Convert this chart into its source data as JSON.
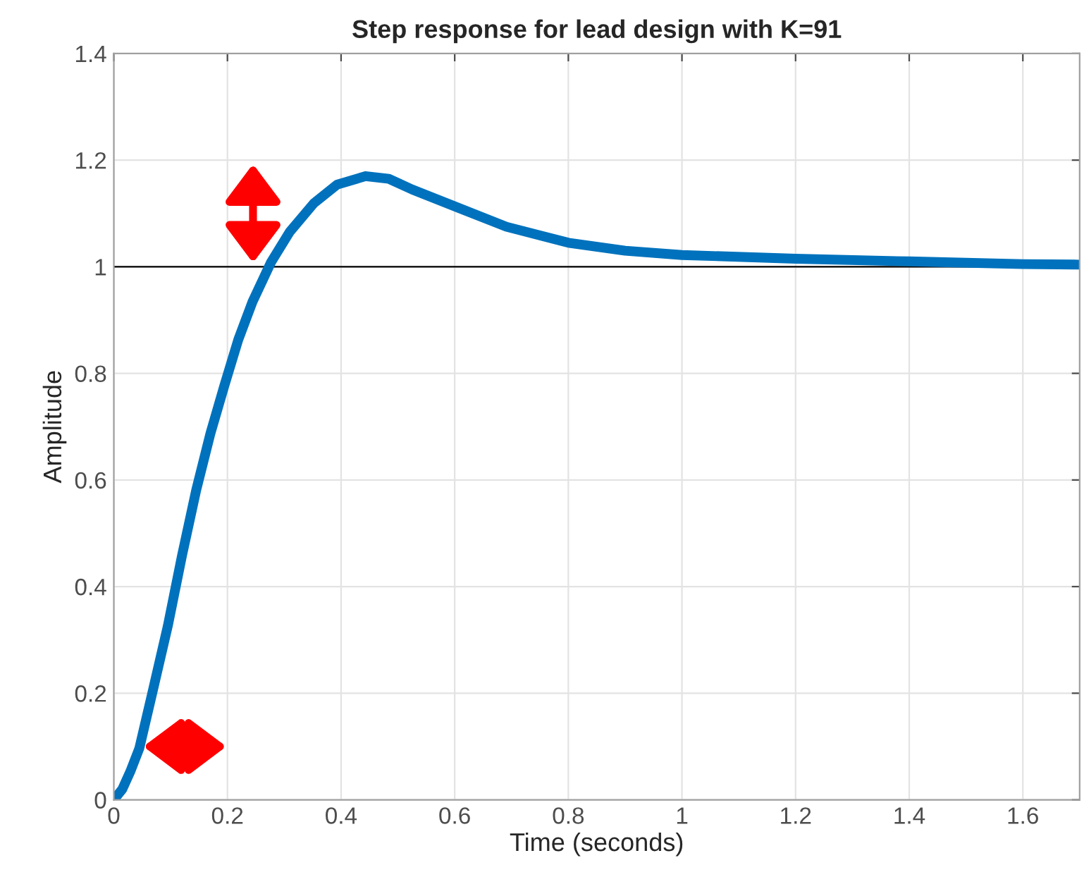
{
  "chart_data": {
    "type": "line",
    "title": "Step response for lead design with K=91",
    "xlabel": "Time (seconds)",
    "ylabel": "Amplitude",
    "x": [
      0,
      0.015,
      0.029,
      0.045,
      0.07,
      0.095,
      0.12,
      0.145,
      0.17,
      0.194,
      0.219,
      0.244,
      0.277,
      0.31,
      0.352,
      0.393,
      0.443,
      0.484,
      0.525,
      0.608,
      0.691,
      0.8,
      0.9,
      1.0,
      1.2,
      1.4,
      1.6,
      1.7
    ],
    "series": [
      {
        "color": "#0072bd",
        "values": [
          0,
          0.02,
          0.053,
          0.097,
          0.211,
          0.326,
          0.458,
          0.581,
          0.687,
          0.775,
          0.863,
          0.934,
          1.009,
          1.066,
          1.119,
          1.154,
          1.17,
          1.165,
          1.145,
          1.11,
          1.075,
          1.045,
          1.03,
          1.022,
          1.015,
          1.01,
          1.005,
          1.004
        ]
      }
    ],
    "ref_lines": [
      {
        "axis": "y",
        "value": 1,
        "color": "#000000"
      }
    ],
    "xlim": [
      0,
      1.7
    ],
    "ylim": [
      0,
      1.4
    ],
    "xticks": [
      0,
      0.2,
      0.4,
      0.6,
      0.8,
      1,
      1.2,
      1.4,
      1.6
    ],
    "yticks": [
      0,
      0.2,
      0.4,
      0.6,
      0.8,
      1,
      1.2,
      1.4
    ],
    "grid": true,
    "legend": false,
    "marker": "none",
    "line_style": "solid"
  }
}
